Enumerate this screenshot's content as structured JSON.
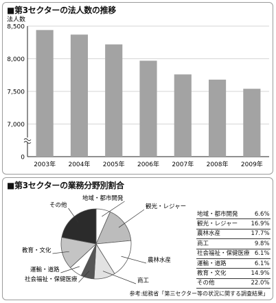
{
  "bar_panel": {
    "title": "■第3セクターの法人数の推移"
  },
  "pie_panel": {
    "title": "■第3セクターの業務分野別割合",
    "source": "参考:総務省「第三セクター等の状況に関する調査結果」"
  },
  "chart_data": [
    {
      "type": "bar",
      "title": "■第3セクターの法人数の推移",
      "ylabel": "法人数",
      "xlabel": "",
      "categories": [
        "2003年",
        "2004年",
        "2005年",
        "2006年",
        "2007年",
        "2008年",
        "2009年"
      ],
      "values": [
        8440,
        8370,
        8220,
        7970,
        7760,
        7680,
        7540
      ],
      "ylim": [
        6500,
        8500
      ],
      "y_axis_break": true,
      "yticks": [
        0,
        7000,
        7500,
        8000,
        8500
      ],
      "ytick_labels": [
        "0",
        "7,000",
        "7,500",
        "8,000",
        "8,500"
      ],
      "grid": true,
      "bar_color": "#a3a3a3"
    },
    {
      "type": "pie",
      "title": "■第3セクターの業務分野別割合",
      "labels": [
        "地域・都市開発",
        "観光・レジャー",
        "農林水産",
        "商工",
        "社会福祉・保健医療",
        "運輸・道路",
        "教育・文化",
        "その他"
      ],
      "values": [
        6.6,
        16.9,
        17.7,
        9.8,
        6.1,
        6.1,
        14.9,
        22.0
      ],
      "value_labels": [
        "6.6%",
        "16.9%",
        "17.7%",
        "9.8%",
        "6.1%",
        "6.1%",
        "14.9%",
        "22.0%"
      ],
      "colors": [
        "#ffffff",
        "#bcbcbc",
        "#ffffff",
        "#e2e2e2",
        "#555555",
        "#ffffff",
        "#c4c4c4",
        "#2b2b2b"
      ],
      "legend": "right-table"
    }
  ]
}
